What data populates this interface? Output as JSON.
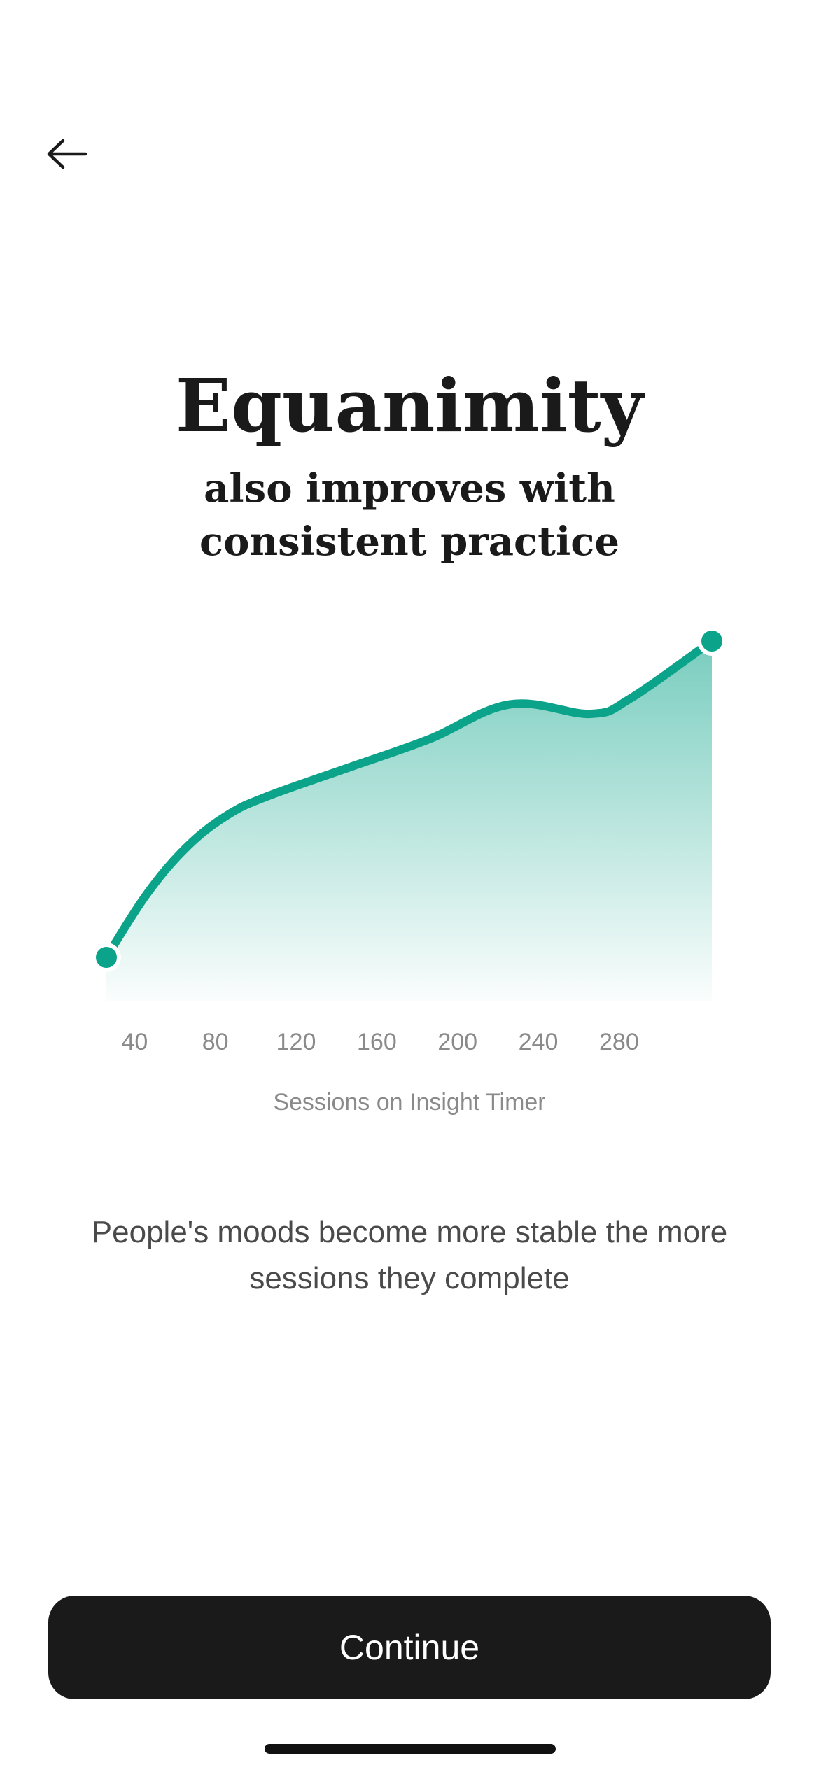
{
  "nav": {
    "back_icon": "arrow-left-icon"
  },
  "header": {
    "title": "Equanimity",
    "subtitle": "also improves with consistent practice"
  },
  "chart_data": {
    "type": "area",
    "x": [
      0,
      20,
      40,
      60,
      80,
      120,
      160,
      200,
      240,
      260,
      300
    ],
    "values": [
      0,
      20,
      35,
      45,
      51,
      60,
      69,
      80,
      77,
      82,
      100
    ],
    "xticks": [
      "40",
      "80",
      "120",
      "160",
      "200",
      "240",
      "280"
    ],
    "xtick_values": [
      40,
      80,
      120,
      160,
      200,
      240,
      280
    ],
    "xlim": [
      0,
      300
    ],
    "ylim": [
      0,
      100
    ],
    "xlabel": "Sessions on Insight Timer",
    "ylabel": "",
    "grid": false,
    "color": "#0ba48a"
  },
  "caption": "People's moods become more stable the more sessions they complete",
  "footer": {
    "continue_label": "Continue"
  },
  "colors": {
    "accent": "#0ba48a",
    "button_bg": "#1a1a1a",
    "button_text": "#ffffff"
  }
}
